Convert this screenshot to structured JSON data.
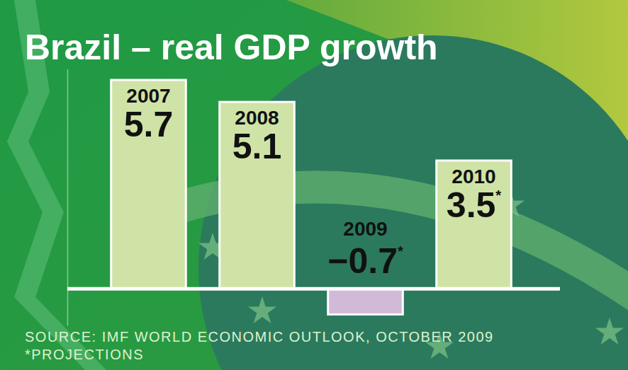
{
  "chart_data": {
    "type": "bar",
    "title": "Brazil – real GDP growth",
    "categories": [
      "2007",
      "2008",
      "2009",
      "2010"
    ],
    "values": [
      5.7,
      5.1,
      -0.7,
      3.5
    ],
    "value_labels": [
      "5.7",
      "5.1",
      "−0.7*",
      "3.5*"
    ],
    "colors": [
      "#cfe3a6",
      "#cfe3a6",
      "#d3b9d8",
      "#cfe3a6"
    ],
    "data_labels": true,
    "tick_labels": "x",
    "grid": false,
    "ylim": [
      -1,
      6
    ],
    "yticks": [
      0
    ],
    "annotations": [
      "SOURCE: IMF WORLD ECONOMIC OUTLOOK, OCTOBER 2009",
      "*PROJECTIONS"
    ]
  }
}
